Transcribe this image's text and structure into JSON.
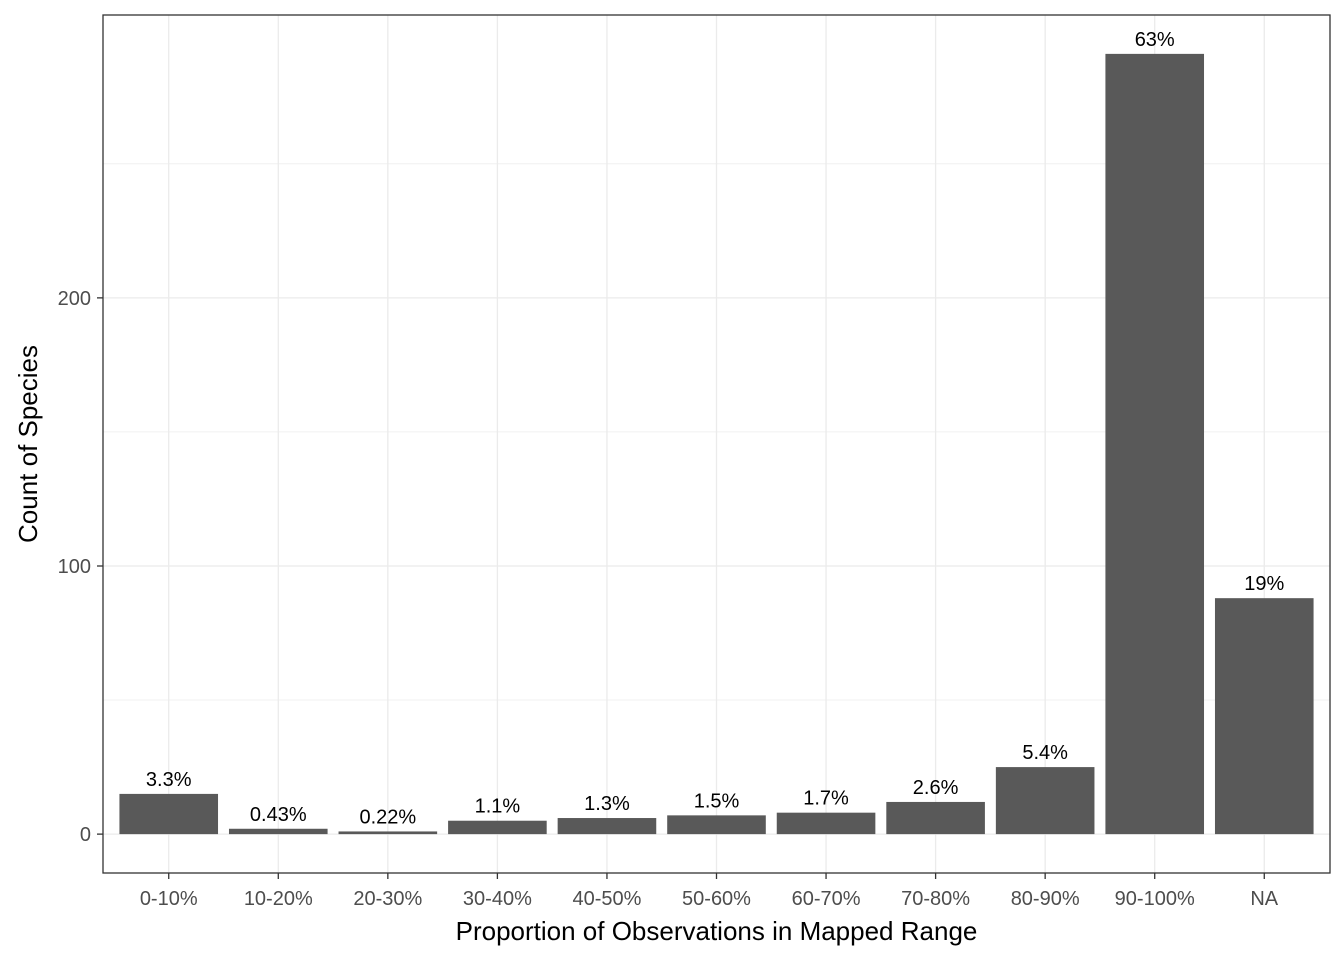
{
  "chart_data": {
    "type": "bar",
    "title": "",
    "xlabel": "Proportion of Observations in Mapped Range",
    "ylabel": "Count of Species",
    "categories": [
      "0-10%",
      "10-20%",
      "20-30%",
      "30-40%",
      "40-50%",
      "50-60%",
      "60-70%",
      "70-80%",
      "80-90%",
      "90-100%",
      "NA"
    ],
    "values": [
      15,
      2,
      1,
      5,
      6,
      7,
      8,
      12,
      25,
      291,
      88
    ],
    "labels": [
      "3.3%",
      "0.43%",
      "0.22%",
      "1.1%",
      "1.3%",
      "1.5%",
      "1.7%",
      "2.6%",
      "5.4%",
      "63%",
      "19%"
    ],
    "yticks": [
      0,
      100,
      200
    ],
    "ylim": [
      -14.5,
      305.5
    ],
    "grid": true,
    "bar_color": "#595959"
  }
}
